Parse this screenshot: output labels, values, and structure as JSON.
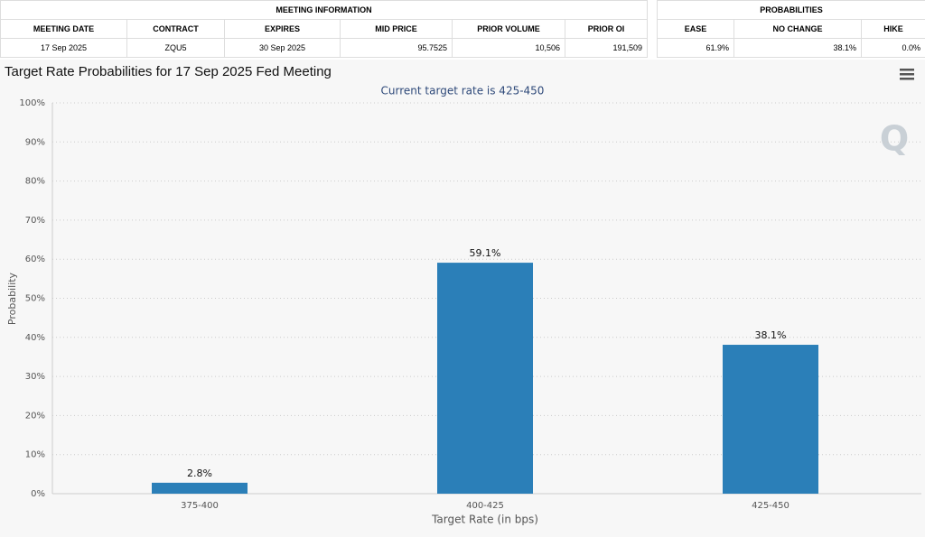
{
  "meeting_table": {
    "title": "MEETING INFORMATION",
    "headers": [
      "MEETING DATE",
      "CONTRACT",
      "EXPIRES",
      "MID PRICE",
      "PRIOR VOLUME",
      "PRIOR OI"
    ],
    "rows": [
      [
        "17 Sep 2025",
        "ZQU5",
        "30 Sep 2025",
        "95.7525",
        "10,506",
        "191,509"
      ]
    ]
  },
  "probability_table": {
    "title": "PROBABILITIES",
    "headers": [
      "EASE",
      "NO CHANGE",
      "HIKE"
    ],
    "rows": [
      [
        "61.9%",
        "38.1%",
        "0.0%"
      ]
    ]
  },
  "chart_data": {
    "type": "bar",
    "title": "Target Rate Probabilities for 17 Sep 2025 Fed Meeting",
    "subtitle": "Current target rate is 425-450",
    "x_label": "Target Rate (in bps)",
    "y_label": "Probability",
    "categories": [
      "375-400",
      "400-425",
      "425-450"
    ],
    "values": [
      2.8,
      59.1,
      38.1
    ],
    "value_labels": [
      "2.8%",
      "59.1%",
      "38.1%"
    ],
    "color": "#2b7fb8",
    "ylim": [
      0,
      100
    ],
    "yticks": [
      {
        "value": 0,
        "label": "0%"
      },
      {
        "value": 10,
        "label": "10%"
      },
      {
        "value": 20,
        "label": "20%"
      },
      {
        "value": 30,
        "label": "30%"
      },
      {
        "value": 40,
        "label": "40%"
      },
      {
        "value": 50,
        "label": "50%"
      },
      {
        "value": 60,
        "label": "60%"
      },
      {
        "value": 70,
        "label": "70%"
      },
      {
        "value": 80,
        "label": "80%"
      },
      {
        "value": 90,
        "label": "90%"
      },
      {
        "value": 100,
        "label": "100%"
      }
    ],
    "grid": true
  }
}
